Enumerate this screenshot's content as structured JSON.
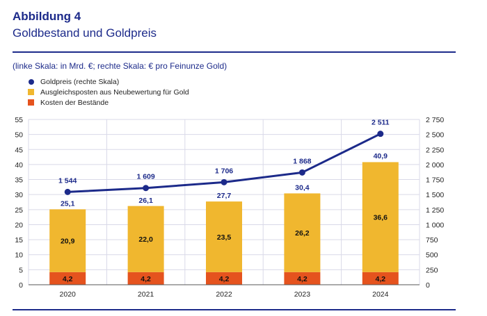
{
  "header": {
    "figure_number": "Abbildung 4",
    "title": "Goldbestand und Goldpreis",
    "subtitle": "(linke Skala: in Mrd. €; rechte Skala: € pro Feinunze Gold)"
  },
  "legend": {
    "items": [
      {
        "label": "Goldpreis (rechte Skala)",
        "color": "#1c2a8a",
        "shape": "dot"
      },
      {
        "label": "Ausgleichsposten aus Neubewertung für Gold",
        "color": "#f0b72f",
        "shape": "square"
      },
      {
        "label": "Kosten der Bestände",
        "color": "#e5531e",
        "shape": "square"
      }
    ]
  },
  "chart_data": {
    "type": "bar",
    "stacked": true,
    "categories": [
      "2020",
      "2021",
      "2022",
      "2023",
      "2024"
    ],
    "series": [
      {
        "name": "Kosten der Bestände",
        "values": [
          4.2,
          4.2,
          4.2,
          4.2,
          4.2
        ],
        "labels": [
          "4,2",
          "4,2",
          "4,2",
          "4,2",
          "4,2"
        ],
        "color": "#e5531e"
      },
      {
        "name": "Ausgleichsposten aus Neubewertung für Gold",
        "values": [
          20.9,
          22.0,
          23.5,
          26.2,
          36.6
        ],
        "labels": [
          "20,9",
          "22,0",
          "23,5",
          "26,2",
          "36,6"
        ],
        "color": "#f0b72f"
      }
    ],
    "totals": [
      25.1,
      26.1,
      27.7,
      30.4,
      40.9
    ],
    "total_labels": [
      "25,1",
      "26,1",
      "27,7",
      "30,4",
      "40,9"
    ],
    "line_series": {
      "name": "Goldpreis (rechte Skala)",
      "axis": "right",
      "values": [
        1544,
        1609,
        1706,
        1868,
        2511
      ],
      "labels": [
        "1 544",
        "1 609",
        "1 706",
        "1 868",
        "2 511"
      ],
      "color": "#1c2a8a"
    },
    "left_axis": {
      "min": 0,
      "max": 55,
      "ticks": [
        "0",
        "5",
        "10",
        "15",
        "20",
        "25",
        "30",
        "35",
        "40",
        "45",
        "50",
        "55"
      ]
    },
    "right_axis": {
      "min": 0,
      "max": 2750,
      "ticks": [
        "0",
        "250",
        "500",
        "750",
        "1 000",
        "1 250",
        "1 500",
        "1 750",
        "2 000",
        "2 250",
        "2 500",
        "2 750"
      ]
    },
    "grid": true,
    "legend_position": "top-left"
  }
}
